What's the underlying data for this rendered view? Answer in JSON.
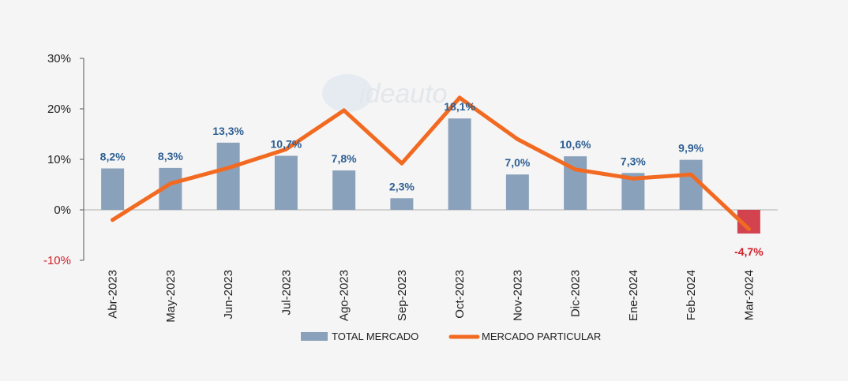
{
  "chart_data": {
    "type": "bar",
    "categories": [
      "Abr-2023",
      "May-2023",
      "Jun-2023",
      "Jul-2023",
      "Ago-2023",
      "Sep-2023",
      "Oct-2023",
      "Nov-2023",
      "Dic-2023",
      "Ene-2024",
      "Feb-2024",
      "Mar-2024"
    ],
    "series": [
      {
        "name": "TOTAL MERCADO",
        "type": "bar",
        "values": [
          8.2,
          8.3,
          13.3,
          10.7,
          7.8,
          2.3,
          18.1,
          7.0,
          10.6,
          7.3,
          9.9,
          -4.7
        ],
        "labels": [
          "8,2%",
          "8,3%",
          "13,3%",
          "10,7%",
          "7,8%",
          "2,3%",
          "18,1%",
          "7,0%",
          "10,6%",
          "7,3%",
          "9,9%",
          "-4,7%"
        ],
        "color": "#8aa1bb",
        "negative_color": "#d2434f"
      },
      {
        "name": "MERCADO PARTICULAR",
        "type": "line",
        "values": [
          -2.0,
          5.2,
          8.3,
          12.0,
          19.7,
          9.2,
          22.2,
          14.0,
          8.0,
          6.2,
          7.0,
          -3.8
        ],
        "color": "#f26a21"
      }
    ],
    "ylim": [
      -10,
      30
    ],
    "yticks": [
      -10,
      0,
      10,
      20,
      30
    ],
    "ytick_labels": [
      "-10%",
      "0%",
      "10%",
      "20%",
      "30%"
    ],
    "negative_tick_color": "#d0202a",
    "label_color": "#2e5f93",
    "legend_position": "bottom",
    "grid": false,
    "watermark": "ideauto"
  }
}
